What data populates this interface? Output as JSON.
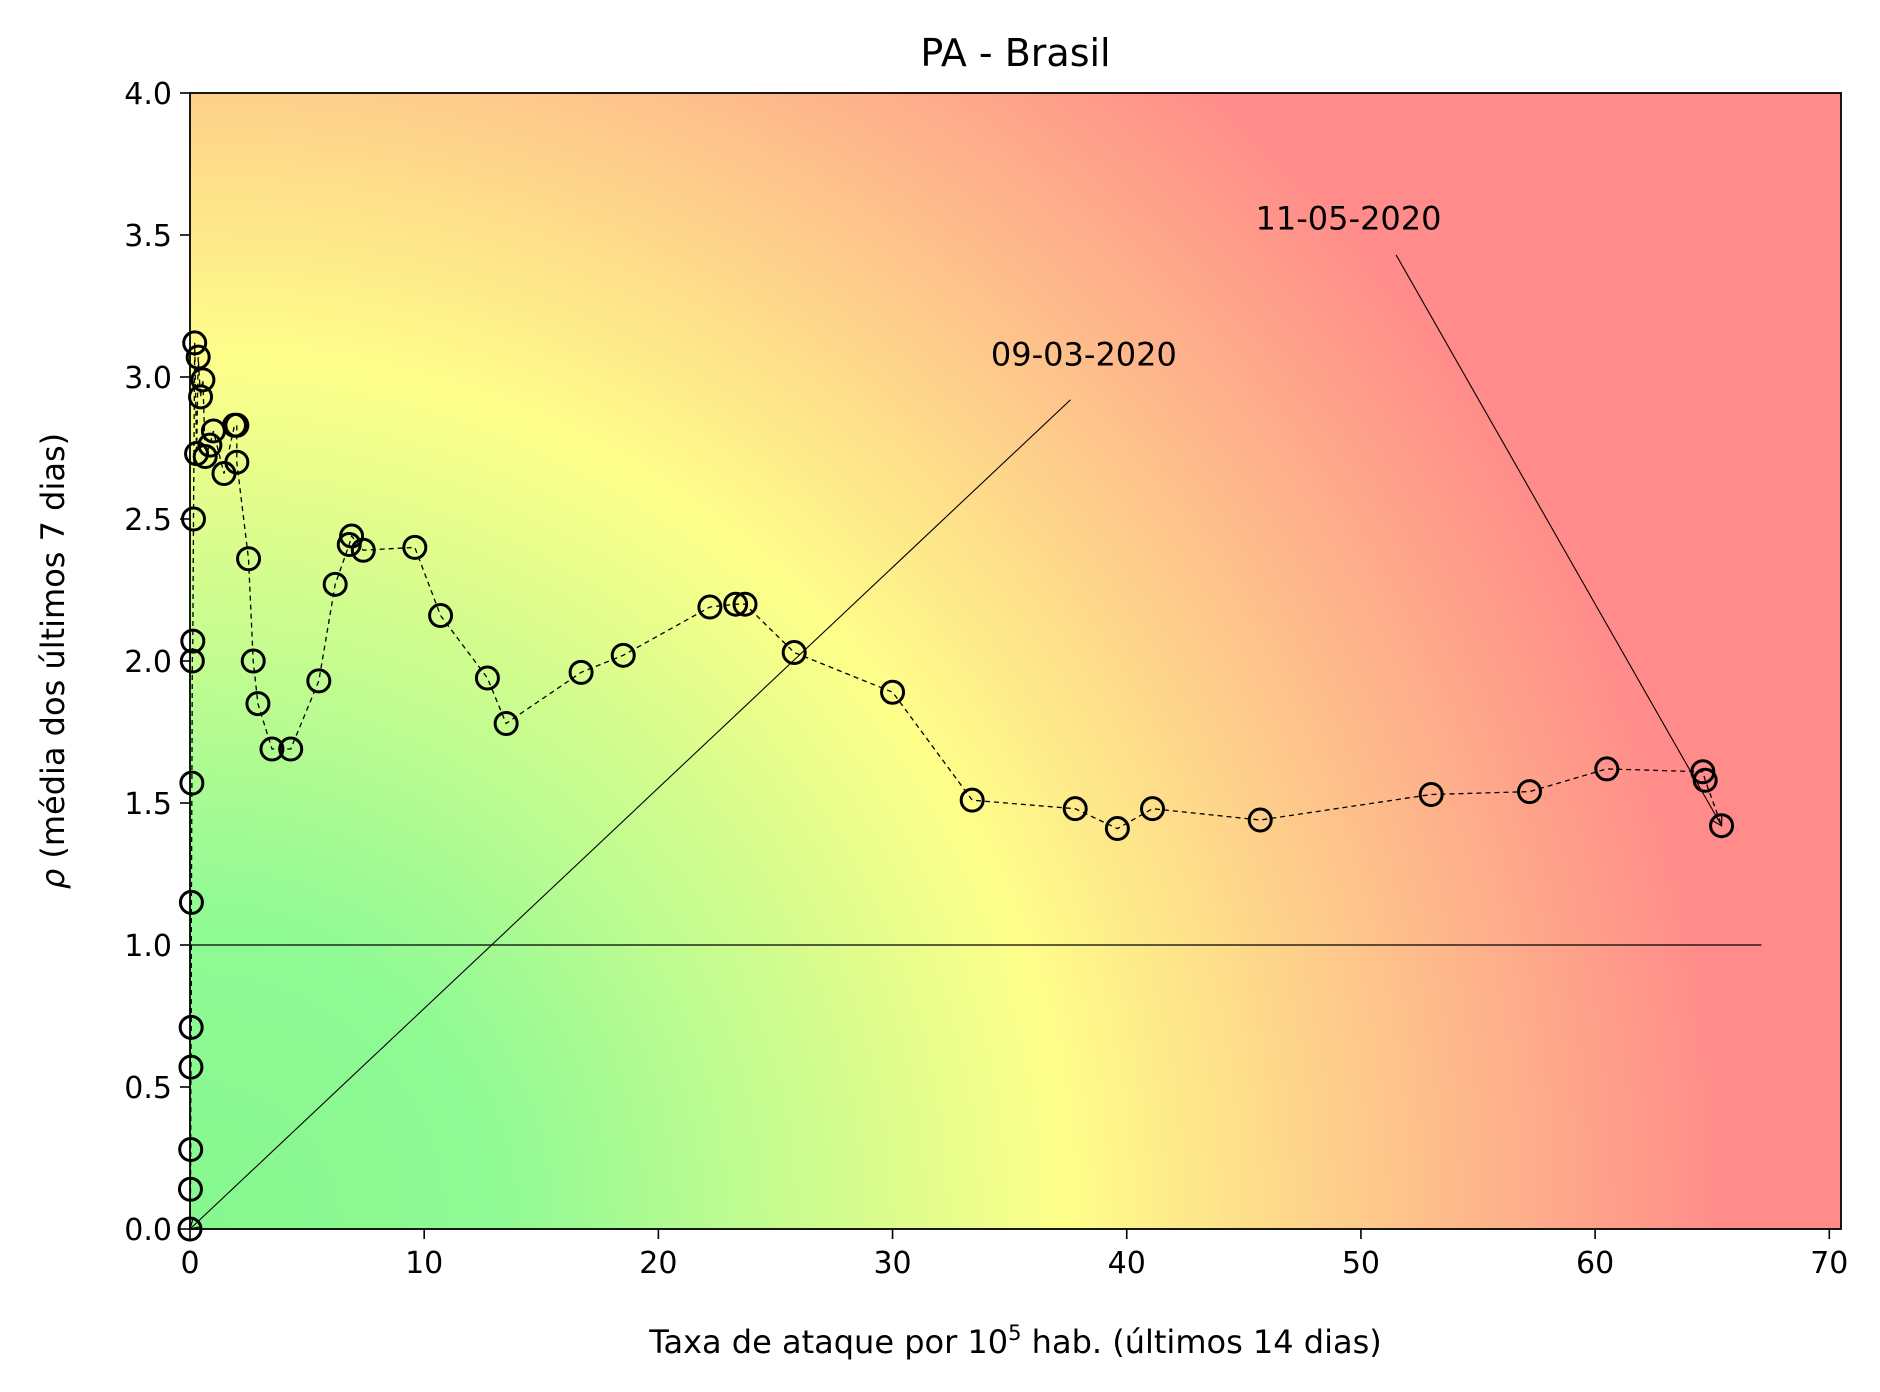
{
  "chart_data": {
    "type": "scatter",
    "title": "PA - Brasil",
    "xlabel_prefix": "Taxa de ataque por 10",
    "xlabel_sup": "5",
    "xlabel_suffix": " hab. (últimos 14 dias)",
    "ylabel_symbol": "ρ",
    "ylabel_text": " (média dos últimos 7 dias)",
    "xlim": [
      0,
      70.5
    ],
    "ylim": [
      0,
      4.0
    ],
    "xticks": [
      0,
      10,
      20,
      30,
      40,
      50,
      60,
      70
    ],
    "xtick_labels": [
      "0",
      "10",
      "20",
      "30",
      "40",
      "50",
      "60",
      "70"
    ],
    "yticks": [
      0,
      0.5,
      1.0,
      1.5,
      2.0,
      2.5,
      3.0,
      3.5,
      4.0
    ],
    "ytick_labels": [
      "0.0",
      "0.5",
      "1.0",
      "1.5",
      "2.0",
      "2.5",
      "3.0",
      "3.5",
      "4.0"
    ],
    "reference_line": {
      "y": 1.0,
      "x_range": [
        0,
        67.1
      ]
    },
    "background": "risk gradient: green (low rate, low rho) to yellow to red (high rate, high rho)",
    "colors": {
      "green": "#86f78f",
      "yellow": "#fefe8a",
      "red": "#ff8b8a",
      "marker_edge": "#000000"
    },
    "series": [
      {
        "marker": "open circle",
        "line": "dashed",
        "points": [
          [
            0.0,
            0.0
          ],
          [
            0.02,
            0.14
          ],
          [
            0.03,
            0.28
          ],
          [
            0.04,
            0.57
          ],
          [
            0.05,
            0.71
          ],
          [
            0.06,
            1.15
          ],
          [
            0.08,
            1.57
          ],
          [
            0.1,
            2.0
          ],
          [
            0.12,
            2.07
          ],
          [
            0.15,
            2.5
          ],
          [
            0.2,
            3.12
          ],
          [
            0.28,
            2.73
          ],
          [
            0.35,
            3.07
          ],
          [
            0.45,
            2.93
          ],
          [
            0.55,
            2.99
          ],
          [
            0.65,
            2.72
          ],
          [
            0.85,
            2.76
          ],
          [
            1.0,
            2.81
          ],
          [
            1.45,
            2.66
          ],
          [
            1.9,
            2.83
          ],
          [
            2.0,
            2.83
          ],
          [
            2.0,
            2.7
          ],
          [
            2.5,
            2.36
          ],
          [
            2.7,
            2.0
          ],
          [
            2.9,
            1.85
          ],
          [
            3.5,
            1.69
          ],
          [
            4.3,
            1.69
          ],
          [
            5.5,
            1.93
          ],
          [
            6.2,
            2.27
          ],
          [
            6.8,
            2.41
          ],
          [
            6.9,
            2.44
          ],
          [
            7.4,
            2.39
          ],
          [
            9.6,
            2.4
          ],
          [
            10.7,
            2.16
          ],
          [
            12.7,
            1.94
          ],
          [
            13.5,
            1.78
          ],
          [
            16.7,
            1.96
          ],
          [
            18.5,
            2.02
          ],
          [
            22.2,
            2.19
          ],
          [
            23.3,
            2.2
          ],
          [
            23.7,
            2.2
          ],
          [
            25.8,
            2.03
          ],
          [
            30.0,
            1.89
          ],
          [
            33.4,
            1.51
          ],
          [
            37.8,
            1.48
          ],
          [
            39.6,
            1.41
          ],
          [
            41.1,
            1.48
          ],
          [
            45.7,
            1.44
          ],
          [
            53.0,
            1.53
          ],
          [
            57.2,
            1.54
          ],
          [
            60.5,
            1.62
          ],
          [
            64.6,
            1.61
          ],
          [
            64.7,
            1.58
          ],
          [
            65.4,
            1.42
          ]
        ]
      }
    ],
    "annotations": [
      {
        "text": "09-03-2020",
        "text_at": [
          34.2,
          3.04
        ],
        "line_from": [
          37.6,
          2.92
        ],
        "arrow_to": [
          0.0,
          0.0
        ]
      },
      {
        "text": "11-05-2020",
        "text_at": [
          45.5,
          3.52
        ],
        "line_from": [
          51.5,
          3.43
        ],
        "arrow_to": [
          65.4,
          1.42
        ]
      }
    ]
  }
}
